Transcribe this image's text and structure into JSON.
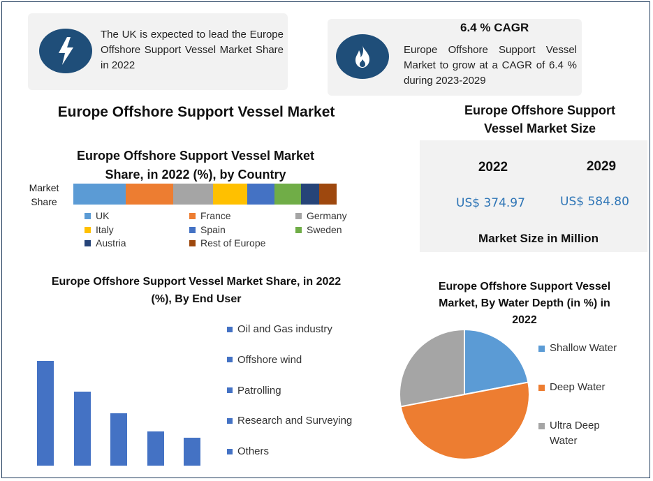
{
  "callouts": {
    "left": {
      "icon": "lightning-bolt-icon",
      "text": "The UK is expected to lead the Europe Offshore Support Vessel Market Share in 2022"
    },
    "right": {
      "icon": "flame-icon",
      "heading": "6.4 % CAGR",
      "text": "Europe Offshore Support Vessel Market to grow at a CAGR of 6.4 % during 2023-2029"
    }
  },
  "main_title": "Europe Offshore Support Vessel Market",
  "market_size": {
    "title": "Europe Offshore Support Vessel Market Size",
    "years": [
      "2022",
      "2029"
    ],
    "values": [
      "US$ 374.97",
      "US$ 584.80"
    ],
    "footer": "Market Size in Million"
  },
  "colors": {
    "accent_value": "#2e75b6",
    "bar_blue": "#4472c4",
    "icon_navy": "#1f4e79"
  },
  "chart_data": [
    {
      "type": "bar",
      "orientation": "horizontal-stacked",
      "title": "Europe Offshore Support Vessel Market Share, in 2022 (%), by Country",
      "category_label": "Market Share",
      "legend_position": "bottom",
      "series": [
        {
          "name": "UK",
          "value": 20,
          "color": "#5b9bd5"
        },
        {
          "name": "France",
          "value": 18,
          "color": "#ed7d31"
        },
        {
          "name": "Germany",
          "value": 15,
          "color": "#a5a5a5"
        },
        {
          "name": "Italy",
          "value": 13,
          "color": "#ffc000"
        },
        {
          "name": "Spain",
          "value": 10.5,
          "color": "#4472c4"
        },
        {
          "name": "Sweden",
          "value": 10,
          "color": "#70ad47"
        },
        {
          "name": "Austria",
          "value": 7,
          "color": "#264478"
        },
        {
          "name": "Rest of Europe",
          "value": 6.5,
          "color": "#9e480e"
        }
      ]
    },
    {
      "type": "bar",
      "title": "Europe Offshore Support Vessel Market Share, in 2022 (%), By End User",
      "categories": [
        "Oil and Gas industry",
        "Offshore wind",
        "Patrolling",
        "Research and Surveying",
        "Others"
      ],
      "values": [
        100,
        71,
        50,
        33,
        27
      ],
      "legend_position": "right",
      "grid": false,
      "axes_visible": false
    },
    {
      "type": "pie",
      "title": "Europe Offshore Support Vessel Market, By Water Depth (in %) in 2022",
      "legend_position": "right",
      "slices": [
        {
          "name": "Shallow Water",
          "value": 22,
          "color": "#5b9bd5"
        },
        {
          "name": "Deep Water",
          "value": 50,
          "color": "#ed7d31"
        },
        {
          "name": "Ultra Deep Water",
          "value": 28,
          "color": "#a5a5a5"
        }
      ]
    }
  ]
}
